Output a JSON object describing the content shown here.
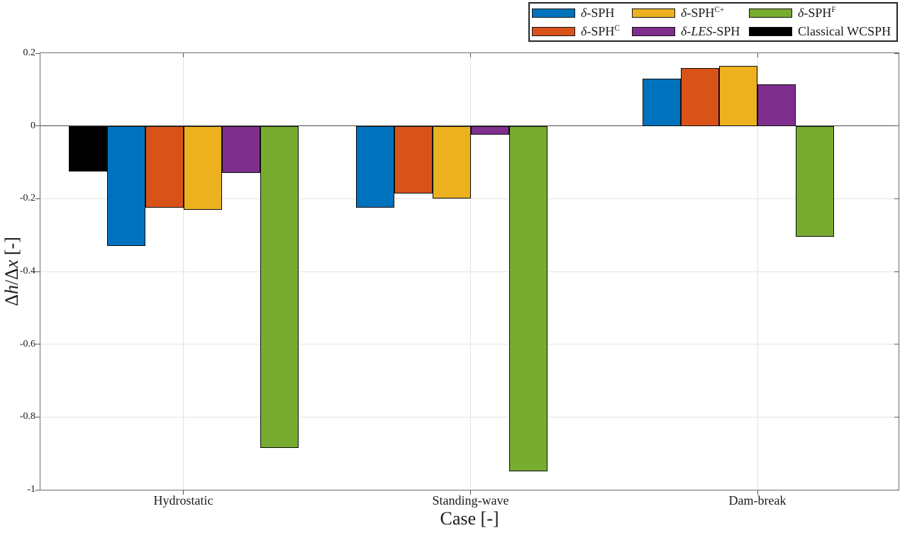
{
  "chart_data": {
    "type": "bar",
    "title": "",
    "xlabel": "Case [-]",
    "ylabel": "Δh/Δx [-]",
    "ylabel_parts": [
      {
        "t": "Δ"
      },
      {
        "t": "h",
        "italic": true
      },
      {
        "t": "/Δ"
      },
      {
        "t": "x",
        "italic": true
      },
      {
        "t": " [-]"
      }
    ],
    "categories": [
      "Hydrostatic",
      "Standing-wave",
      "Dam-break"
    ],
    "ylim": [
      -1,
      0.2
    ],
    "yticks": [
      0.2,
      0,
      -0.2,
      -0.4,
      -0.6,
      -0.8,
      -1
    ],
    "ytick_labels": [
      "0.2",
      "0",
      "-0.2",
      "-0.4",
      "-0.6",
      "-0.8",
      "-1"
    ],
    "grid": true,
    "legend_position": "top-right-outside",
    "axis_colors": {
      "box": "#6e6e6e",
      "grid": "#e4e4e4",
      "zero_line": "#4d4d4d",
      "text": "#1a1a1a",
      "bar_edge": "#0d0d0d"
    },
    "series": [
      {
        "id": "delta-sph",
        "label": "δ-SPH",
        "label_parts": [
          {
            "t": "δ",
            "italic": true
          },
          {
            "t": "-SPH"
          }
        ],
        "color": "#0072BD",
        "values": [
          -0.33,
          -0.225,
          0.13
        ]
      },
      {
        "id": "delta-sph-c",
        "label": "δ-SPH^C",
        "label_parts": [
          {
            "t": "δ",
            "italic": true
          },
          {
            "t": "-SPH"
          },
          {
            "t": "C",
            "sup": true
          }
        ],
        "color": "#D95319",
        "values": [
          -0.225,
          -0.185,
          0.16
        ]
      },
      {
        "id": "delta-sph-c-plus",
        "label": "δ-SPH^C+",
        "label_parts": [
          {
            "t": "δ",
            "italic": true
          },
          {
            "t": "-SPH"
          },
          {
            "t": "C+",
            "sup": true
          }
        ],
        "color": "#EDB120",
        "values": [
          -0.23,
          -0.2,
          0.165
        ]
      },
      {
        "id": "delta-les-sph",
        "label": "δ-LES-SPH",
        "label_parts": [
          {
            "t": "δ",
            "italic": true
          },
          {
            "t": "-"
          },
          {
            "t": "LES",
            "italic": true
          },
          {
            "t": "-SPH"
          }
        ],
        "color": "#7E2F8E",
        "values": [
          -0.13,
          -0.025,
          0.115
        ]
      },
      {
        "id": "delta-sph-f",
        "label": "δ-SPH^F",
        "label_parts": [
          {
            "t": "δ",
            "italic": true
          },
          {
            "t": "-SPH"
          },
          {
            "t": "F",
            "sup": true
          }
        ],
        "color": "#77AC30",
        "values": [
          -0.885,
          -0.95,
          -0.305
        ]
      },
      {
        "id": "classical-wcsph",
        "label": "Classical WCSPH",
        "label_parts": [
          {
            "t": "Classical WCSPH"
          }
        ],
        "color": "#000000",
        "values": [
          -0.125,
          null,
          null
        ]
      }
    ],
    "groups": [
      {
        "category": "Hydrostatic",
        "bars": [
          {
            "series": "classical-wcsph",
            "slot": 0,
            "value": -0.125
          },
          {
            "series": "delta-sph",
            "slot": 1,
            "value": -0.33
          },
          {
            "series": "delta-sph-c",
            "slot": 2,
            "value": -0.225
          },
          {
            "series": "delta-sph-c-plus",
            "slot": 3,
            "value": -0.23
          },
          {
            "series": "delta-les-sph",
            "slot": 4,
            "value": -0.13
          },
          {
            "series": "delta-sph-f",
            "slot": 5,
            "value": -0.885
          }
        ]
      },
      {
        "category": "Standing-wave",
        "bars": [
          {
            "series": "delta-sph",
            "slot": 0,
            "value": -0.225
          },
          {
            "series": "delta-sph-c",
            "slot": 1,
            "value": -0.185
          },
          {
            "series": "delta-sph-c-plus",
            "slot": 2,
            "value": -0.2
          },
          {
            "series": "delta-les-sph",
            "slot": 3,
            "value": -0.025
          },
          {
            "series": "delta-sph-f",
            "slot": 4,
            "value": -0.95
          }
        ]
      },
      {
        "category": "Dam-break",
        "bars": [
          {
            "series": "delta-sph",
            "slot": 0,
            "value": 0.13
          },
          {
            "series": "delta-sph-c",
            "slot": 1,
            "value": 0.16
          },
          {
            "series": "delta-sph-c-plus",
            "slot": 2,
            "value": 0.165
          },
          {
            "series": "delta-les-sph",
            "slot": 3,
            "value": 0.115
          },
          {
            "series": "delta-sph-f",
            "slot": 4,
            "value": -0.305
          }
        ]
      }
    ]
  }
}
